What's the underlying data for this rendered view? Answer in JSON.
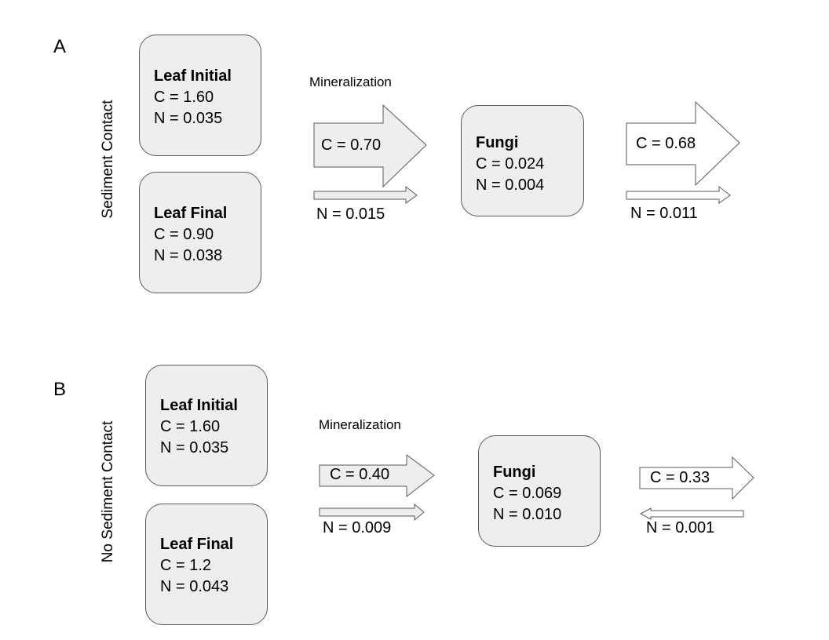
{
  "panels": [
    {
      "letter": "A",
      "side_label": "Sediment Contact",
      "leaf_initial": {
        "title": "Leaf Initial",
        "c": "C = 1.60",
        "n": "N = 0.035"
      },
      "leaf_final": {
        "title": "Leaf Final",
        "c": "C = 0.90",
        "n": "N = 0.038"
      },
      "mineralization_label": "Mineralization",
      "to_fungi": {
        "c": "C = 0.70",
        "n": "N = 0.015"
      },
      "fungi": {
        "title": "Fungi",
        "c": "C = 0.024",
        "n": "N = 0.004"
      },
      "from_fungi": {
        "c": "C = 0.68",
        "n": "N = 0.011"
      }
    },
    {
      "letter": "B",
      "side_label": "No Sediment Contact",
      "leaf_initial": {
        "title": "Leaf Initial",
        "c": "C = 1.60",
        "n": "N = 0.035"
      },
      "leaf_final": {
        "title": "Leaf Final",
        "c": "C = 1.2",
        "n": "N = 0.043"
      },
      "mineralization_label": "Mineralization",
      "to_fungi": {
        "c": "C = 0.40",
        "n": "N = 0.009"
      },
      "fungi": {
        "title": "Fungi",
        "c": "C = 0.069",
        "n": "N = 0.010"
      },
      "from_fungi": {
        "c": "C = 0.33",
        "n": "N = 0.001"
      }
    }
  ],
  "colors": {
    "box_fill": "#eeeeee",
    "stroke": "#595959",
    "background": "#ffffff"
  }
}
